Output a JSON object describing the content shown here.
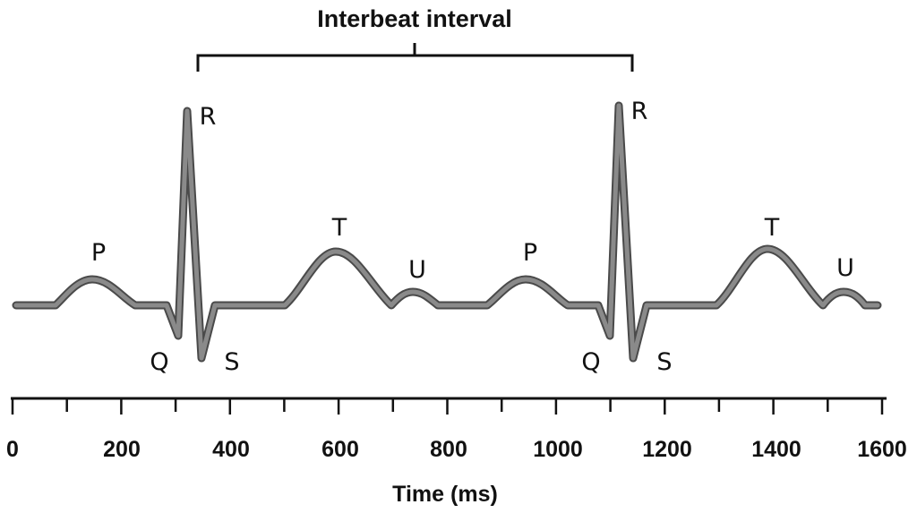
{
  "diagram": {
    "title": "Interbeat interval",
    "x_axis_label": "Time (ms)",
    "x_ticks": [
      "0",
      "200",
      "400",
      "600",
      "800",
      "1000",
      "1200",
      "1400",
      "1600"
    ],
    "wave_labels": [
      "P",
      "Q",
      "R",
      "S",
      "T",
      "U",
      "P",
      "Q",
      "R",
      "S",
      "T",
      "U"
    ],
    "colors": {
      "trace": "#8a8a8a",
      "trace_edge": "#4a4a4a",
      "axis": "#111111",
      "text": "#111111"
    }
  }
}
